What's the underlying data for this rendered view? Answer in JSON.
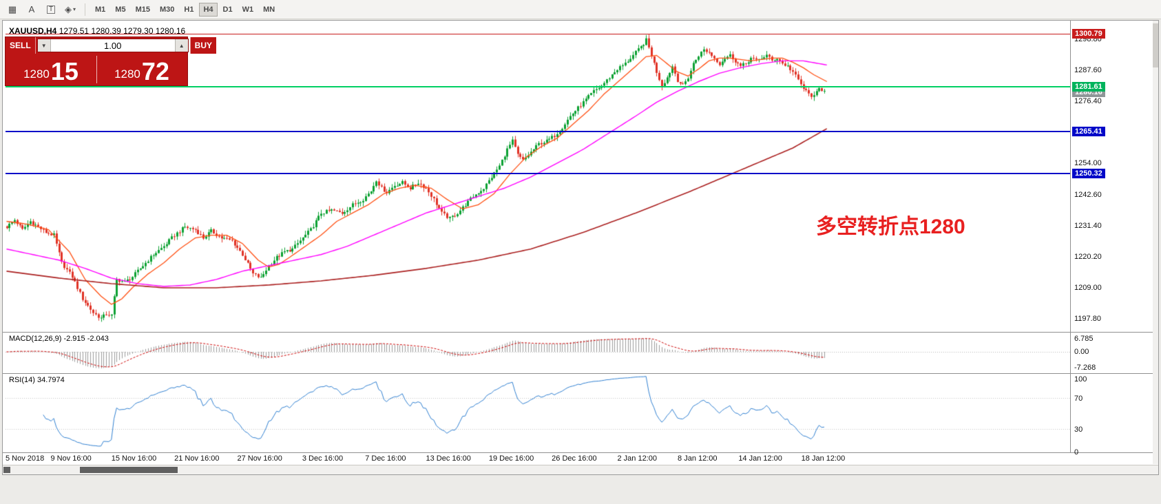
{
  "toolbar": {
    "tools": [
      {
        "name": "grid-tool-icon",
        "glyph": "▦"
      },
      {
        "name": "text-a-icon",
        "glyph": "A"
      },
      {
        "name": "text-box-icon",
        "glyph": "T"
      },
      {
        "name": "indicators-icon",
        "glyph": "◈",
        "caret": "▾"
      }
    ],
    "timeframes": [
      "M1",
      "M5",
      "M15",
      "M30",
      "H1",
      "H4",
      "D1",
      "W1",
      "MN"
    ],
    "active_timeframe": "H4"
  },
  "chart": {
    "symbol": "XAUUSD,H4",
    "ohlc_text": "1279.51 1280.39 1279.30 1280.16",
    "annotation": {
      "text": "多空转折点1280",
      "color": "#e82020"
    },
    "price_axis_labels": [
      "1298.80",
      "1287.60",
      "1276.40",
      "1254.00",
      "1242.60",
      "1231.40",
      "1220.20",
      "1209.00",
      "1197.80"
    ],
    "badges": [
      {
        "label": "1300.79",
        "price": 1300.79,
        "bg": "#c81c1c"
      },
      {
        "label": "1280.16",
        "price": 1280.16,
        "bg": "#8f9698"
      },
      {
        "label": "1281.61",
        "price": 1281.61,
        "bg": "#00b35c"
      },
      {
        "label": "1265.41",
        "price": 1265.41,
        "bg": "#0008c8"
      },
      {
        "label": "1250.32",
        "price": 1250.32,
        "bg": "#0008c8"
      }
    ],
    "hlines": [
      {
        "price": 1300.79,
        "color": "#c81c1c",
        "w": 1
      },
      {
        "price": 1281.61,
        "color": "#00cf62",
        "w": 2
      },
      {
        "price": 1265.41,
        "color": "#0008c8",
        "w": 2
      },
      {
        "price": 1250.32,
        "color": "#0008c8",
        "w": 2
      }
    ],
    "time_axis": [
      {
        "i": 0,
        "t": "5 Nov 2018"
      },
      {
        "i": 25,
        "t": "9 Nov 16:00"
      },
      {
        "i": 49,
        "t": "15 Nov 16:00"
      },
      {
        "i": 73,
        "t": "21 Nov 16:00"
      },
      {
        "i": 97,
        "t": "27 Nov 16:00"
      },
      {
        "i": 121,
        "t": "3 Dec 16:00"
      },
      {
        "i": 145,
        "t": "7 Dec 16:00"
      },
      {
        "i": 169,
        "t": "13 Dec 16:00"
      },
      {
        "i": 193,
        "t": "19 Dec 16:00"
      },
      {
        "i": 217,
        "t": "26 Dec 16:00"
      },
      {
        "i": 241,
        "t": "2 Jan 12:00"
      },
      {
        "i": 264,
        "t": "8 Jan 12:00"
      },
      {
        "i": 288,
        "t": "14 Jan 12:00"
      },
      {
        "i": 312,
        "t": "18 Jan 12:00"
      }
    ]
  },
  "trade_panel": {
    "sell_label": "SELL",
    "buy_label": "BUY",
    "volume": "1.00",
    "spinner_down_glyph": "▼",
    "spinner_up_glyph": "▲",
    "sell_price": {
      "main": "1280",
      "pips": "15"
    },
    "buy_price": {
      "main": "1280",
      "pips": "72"
    }
  },
  "macd": {
    "label": "MACD(12,26,9) -2.915 -2.043",
    "axis_labels": [
      "6.785",
      "0.00",
      "-7.268"
    ]
  },
  "rsi": {
    "label": "RSI(14) 34.7974",
    "axis_labels": [
      "100",
      "70",
      "30",
      "0"
    ]
  },
  "chart_data": {
    "type": "candlestick",
    "symbol": "XAUUSD",
    "timeframe": "H4",
    "ohlc_header": {
      "open": 1279.51,
      "high": 1280.39,
      "low": 1279.3,
      "close": 1280.16
    },
    "bars": 313,
    "price_axis_top": 1303.5,
    "price_axis_bottom": 1193.3,
    "candle_colors": {
      "up": "#0ca132",
      "down": "#e03226"
    },
    "close_anchors": [
      [
        0,
        1231
      ],
      [
        3,
        1233.5
      ],
      [
        6,
        1230
      ],
      [
        9,
        1233
      ],
      [
        12,
        1231
      ],
      [
        15,
        1229
      ],
      [
        18,
        1228
      ],
      [
        21,
        1218
      ],
      [
        25,
        1213
      ],
      [
        29,
        1205
      ],
      [
        33,
        1200
      ],
      [
        36,
        1198
      ],
      [
        38,
        1199.5
      ],
      [
        40,
        1199
      ],
      [
        42,
        1212
      ],
      [
        45,
        1211
      ],
      [
        48,
        1213
      ],
      [
        52,
        1217
      ],
      [
        56,
        1221
      ],
      [
        60,
        1224
      ],
      [
        64,
        1228
      ],
      [
        68,
        1231
      ],
      [
        72,
        1230
      ],
      [
        75,
        1227
      ],
      [
        78,
        1229.5
      ],
      [
        82,
        1227
      ],
      [
        86,
        1226
      ],
      [
        90,
        1221
      ],
      [
        94,
        1214
      ],
      [
        97,
        1212.5
      ],
      [
        100,
        1217
      ],
      [
        103,
        1220
      ],
      [
        106,
        1222
      ],
      [
        109,
        1223
      ],
      [
        112,
        1226
      ],
      [
        116,
        1230
      ],
      [
        120,
        1236
      ],
      [
        124,
        1237
      ],
      [
        128,
        1236
      ],
      [
        132,
        1239
      ],
      [
        136,
        1241
      ],
      [
        139,
        1244
      ],
      [
        141,
        1248
      ],
      [
        143,
        1245
      ],
      [
        145,
        1243.5
      ],
      [
        148,
        1246
      ],
      [
        151,
        1247
      ],
      [
        154,
        1245
      ],
      [
        157,
        1247
      ],
      [
        160,
        1245
      ],
      [
        163,
        1241
      ],
      [
        166,
        1236
      ],
      [
        169,
        1234
      ],
      [
        172,
        1236
      ],
      [
        175,
        1239
      ],
      [
        178,
        1242
      ],
      [
        182,
        1245
      ],
      [
        185,
        1249
      ],
      [
        188,
        1253
      ],
      [
        191,
        1259
      ],
      [
        193,
        1262
      ],
      [
        195,
        1257
      ],
      [
        197,
        1255
      ],
      [
        200,
        1258
      ],
      [
        203,
        1261
      ],
      [
        206,
        1262
      ],
      [
        209,
        1264
      ],
      [
        212,
        1267
      ],
      [
        215,
        1271
      ],
      [
        218,
        1274
      ],
      [
        221,
        1277
      ],
      [
        224,
        1280
      ],
      [
        227,
        1282
      ],
      [
        230,
        1285
      ],
      [
        233,
        1288
      ],
      [
        236,
        1290
      ],
      [
        239,
        1293
      ],
      [
        242,
        1296
      ],
      [
        244,
        1298.5
      ],
      [
        246,
        1293
      ],
      [
        248,
        1287
      ],
      [
        250,
        1282
      ],
      [
        252,
        1285
      ],
      [
        254,
        1289
      ],
      [
        256,
        1284
      ],
      [
        258,
        1282
      ],
      [
        260,
        1285
      ],
      [
        262,
        1290
      ],
      [
        264,
        1293
      ],
      [
        266,
        1295
      ],
      [
        268,
        1294
      ],
      [
        270,
        1292
      ],
      [
        272,
        1290
      ],
      [
        274,
        1292
      ],
      [
        276,
        1293
      ],
      [
        278,
        1291
      ],
      [
        280,
        1289
      ],
      [
        282,
        1290
      ],
      [
        284,
        1292
      ],
      [
        286,
        1291
      ],
      [
        288,
        1292
      ],
      [
        290,
        1293
      ],
      [
        292,
        1291
      ],
      [
        294,
        1292
      ],
      [
        296,
        1290
      ],
      [
        298,
        1289
      ],
      [
        300,
        1287
      ],
      [
        302,
        1284
      ],
      [
        304,
        1281
      ],
      [
        306,
        1279
      ],
      [
        308,
        1278
      ],
      [
        310,
        1281
      ],
      [
        312,
        1280.16
      ]
    ],
    "ma_lines": [
      {
        "name": "ma-fast",
        "color": "#ff4f12",
        "width": 1.3,
        "anchors": [
          [
            0,
            1233
          ],
          [
            8,
            1232
          ],
          [
            16,
            1230
          ],
          [
            24,
            1222
          ],
          [
            30,
            1212
          ],
          [
            36,
            1206
          ],
          [
            40,
            1203
          ],
          [
            44,
            1205
          ],
          [
            48,
            1209
          ],
          [
            54,
            1214
          ],
          [
            60,
            1218
          ],
          [
            66,
            1223
          ],
          [
            72,
            1227
          ],
          [
            78,
            1228
          ],
          [
            84,
            1228
          ],
          [
            90,
            1225
          ],
          [
            96,
            1219
          ],
          [
            100,
            1216.5
          ],
          [
            104,
            1217.5
          ],
          [
            108,
            1220
          ],
          [
            114,
            1224
          ],
          [
            120,
            1228
          ],
          [
            126,
            1233
          ],
          [
            132,
            1236
          ],
          [
            138,
            1239
          ],
          [
            144,
            1243
          ],
          [
            150,
            1245
          ],
          [
            156,
            1246
          ],
          [
            162,
            1245
          ],
          [
            168,
            1241
          ],
          [
            174,
            1237.5
          ],
          [
            180,
            1239
          ],
          [
            186,
            1243
          ],
          [
            192,
            1250
          ],
          [
            198,
            1256
          ],
          [
            204,
            1260
          ],
          [
            210,
            1263
          ],
          [
            216,
            1268
          ],
          [
            222,
            1273
          ],
          [
            228,
            1279
          ],
          [
            234,
            1284
          ],
          [
            240,
            1289
          ],
          [
            244,
            1292.5
          ],
          [
            248,
            1293
          ],
          [
            252,
            1290
          ],
          [
            256,
            1287
          ],
          [
            260,
            1285.5
          ],
          [
            264,
            1288
          ],
          [
            268,
            1291
          ],
          [
            272,
            1292
          ],
          [
            276,
            1292
          ],
          [
            280,
            1291.5
          ],
          [
            284,
            1291
          ],
          [
            288,
            1291.5
          ],
          [
            292,
            1292
          ],
          [
            296,
            1292
          ],
          [
            300,
            1290.5
          ],
          [
            304,
            1288.5
          ],
          [
            308,
            1286
          ],
          [
            313,
            1283.5
          ]
        ]
      },
      {
        "name": "ma-medium",
        "color": "#ff00ff",
        "width": 1.4,
        "anchors": [
          [
            0,
            1223
          ],
          [
            10,
            1221
          ],
          [
            20,
            1219
          ],
          [
            30,
            1216
          ],
          [
            40,
            1212.5
          ],
          [
            50,
            1210.5
          ],
          [
            60,
            1209.5
          ],
          [
            70,
            1210
          ],
          [
            80,
            1212
          ],
          [
            90,
            1215
          ],
          [
            100,
            1217
          ],
          [
            110,
            1219
          ],
          [
            120,
            1221
          ],
          [
            130,
            1224
          ],
          [
            140,
            1228
          ],
          [
            150,
            1232
          ],
          [
            160,
            1236
          ],
          [
            170,
            1239
          ],
          [
            180,
            1242
          ],
          [
            190,
            1245
          ],
          [
            200,
            1249
          ],
          [
            210,
            1254
          ],
          [
            220,
            1259
          ],
          [
            230,
            1265
          ],
          [
            240,
            1271
          ],
          [
            248,
            1276
          ],
          [
            256,
            1280
          ],
          [
            264,
            1283.5
          ],
          [
            272,
            1286.5
          ],
          [
            280,
            1288.5
          ],
          [
            288,
            1290
          ],
          [
            296,
            1291
          ],
          [
            304,
            1291
          ],
          [
            313,
            1289.5
          ]
        ]
      },
      {
        "name": "ma-slow",
        "color": "#aa1f1f",
        "width": 1.6,
        "anchors": [
          [
            0,
            1215
          ],
          [
            20,
            1212.5
          ],
          [
            40,
            1210.5
          ],
          [
            60,
            1209
          ],
          [
            80,
            1209
          ],
          [
            100,
            1210
          ],
          [
            120,
            1211.5
          ],
          [
            140,
            1213.5
          ],
          [
            160,
            1216
          ],
          [
            180,
            1219
          ],
          [
            200,
            1223
          ],
          [
            220,
            1229
          ],
          [
            240,
            1236
          ],
          [
            260,
            1243.5
          ],
          [
            280,
            1251.5
          ],
          [
            300,
            1259.5
          ],
          [
            313,
            1266.5
          ]
        ]
      }
    ],
    "indicators": {
      "macd": {
        "fast": 12,
        "slow": 26,
        "signal": 9,
        "last": -2.915,
        "last_signal": -2.043,
        "scale_max": 6.785,
        "scale_min": -7.268,
        "histogram_color": "#9b9b9b",
        "signal_color": "#cc0000"
      },
      "rsi": {
        "period": 14,
        "last": 34.7974,
        "levels": [
          70,
          30
        ],
        "line_color": "#2f7fd0"
      }
    },
    "hline_levels": [
      1300.79,
      1281.61,
      1265.41,
      1250.32
    ],
    "annotation": "多空转折点1280"
  }
}
